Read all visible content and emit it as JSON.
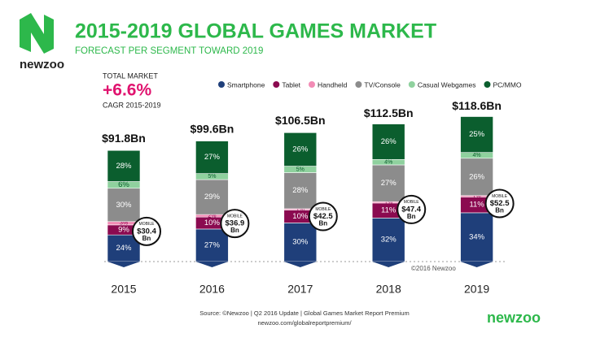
{
  "brand": "newzoo",
  "chart_data": {
    "type": "bar",
    "stacked": true,
    "title": "2015-2019 GLOBAL GAMES MARKET",
    "subtitle": "FORECAST PER SEGMENT TOWARD 2019",
    "summary": {
      "label": "TOTAL MARKET",
      "value_label": "+6.6%",
      "value": 6.6,
      "note": "CAGR 2015-2019"
    },
    "categories": [
      "2015",
      "2016",
      "2017",
      "2018",
      "2019"
    ],
    "totals": {
      "values": [
        91.8,
        99.6,
        106.5,
        112.5,
        118.6
      ],
      "value_labels": [
        "$91.8Bn",
        "$99.6Bn",
        "$106.5Bn",
        "$112.5Bn",
        "$118.6Bn"
      ]
    },
    "series": [
      {
        "name": "Smartphone",
        "color": "#1f3f7a",
        "values": [
          24,
          27,
          30,
          32,
          34
        ],
        "value_labels": [
          "24%",
          "27%",
          "30%",
          "32%",
          "34%"
        ]
      },
      {
        "name": "Tablet",
        "color": "#8b0a50",
        "values": [
          9,
          10,
          10,
          11,
          11
        ],
        "value_labels": [
          "9%",
          "10%",
          "10%",
          "11%",
          "11%"
        ]
      },
      {
        "name": "Handheld",
        "color": "#f28bb5",
        "values": [
          3,
          2,
          1,
          1,
          1
        ],
        "value_labels": [
          "3%",
          "2%",
          "1%",
          "1%",
          "1%"
        ]
      },
      {
        "name": "TV/Console",
        "color": "#8c8c8c",
        "values": [
          30,
          29,
          28,
          27,
          26
        ],
        "value_labels": [
          "30%",
          "29%",
          "28%",
          "27%",
          "26%"
        ]
      },
      {
        "name": "Casual Webgames",
        "color": "#8fd19e",
        "values": [
          6,
          5,
          5,
          4,
          4
        ],
        "value_labels": [
          "6%",
          "5%",
          "5%",
          "4%",
          "4%"
        ]
      },
      {
        "name": "PC/MMO",
        "color": "#0b5e2e",
        "values": [
          28,
          27,
          26,
          26,
          25
        ],
        "value_labels": [
          "28%",
          "27%",
          "26%",
          "26%",
          "25%"
        ]
      }
    ],
    "mobile": {
      "label": "MOBILE",
      "unit": "Bn",
      "values": [
        30.4,
        36.9,
        42.5,
        47.4,
        52.5
      ],
      "value_labels": [
        "$30.4",
        "$36.9",
        "$42.5",
        "$47.4",
        "$52.5"
      ]
    },
    "copyright": "©2016 Newzoo",
    "source": "Source: ©Newzoo | Q2 2016 Update | Global Games Market Report Premium",
    "source_url": "newzoo.com/globalreportpremium/"
  }
}
